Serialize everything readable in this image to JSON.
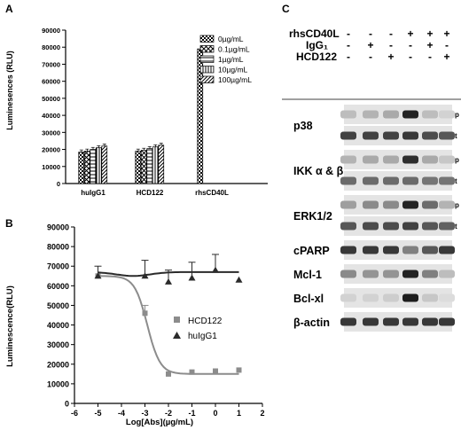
{
  "figure": {
    "panel_labels": [
      "A",
      "B",
      "C"
    ]
  },
  "chart_data": [
    {
      "panel": "A",
      "type": "bar",
      "ylabel": "Luminesences (RLU)",
      "xlabel": "",
      "ylim": [
        0,
        90000
      ],
      "yticks": [
        "0",
        "10000",
        "20000",
        "30000",
        "40000",
        "50000",
        "60000",
        "70000",
        "80000",
        "90000"
      ],
      "categories": [
        "huIgG1",
        "HCD122",
        "rhsCD40L"
      ],
      "legend_position": "top-right",
      "series": [
        {
          "name": "0µg/mL",
          "pattern": "checker-dense",
          "values": [
            18500,
            19000,
            79000
          ]
        },
        {
          "name": "0.1µg/mL",
          "pattern": "crosshatch",
          "values": [
            19000,
            19500,
            null
          ]
        },
        {
          "name": "1µg/mL",
          "pattern": "horizontal",
          "values": [
            20000,
            20500,
            null
          ]
        },
        {
          "name": "10µg/mL",
          "pattern": "vertical",
          "values": [
            21000,
            21500,
            null
          ]
        },
        {
          "name": "100µg/mL",
          "pattern": "diagonal",
          "values": [
            22000,
            22500,
            null
          ]
        }
      ]
    },
    {
      "panel": "B",
      "type": "scatter",
      "ylabel": "Luminescence(RLU)",
      "xlabel": "Log[Abs](µg/mL)",
      "xlim": [
        -6,
        2
      ],
      "ylim": [
        0,
        90000
      ],
      "xticks": [
        "-6",
        "-5",
        "-4",
        "-3",
        "-2",
        "-1",
        "0",
        "1",
        "2"
      ],
      "yticks": [
        "0",
        "10000",
        "20000",
        "30000",
        "40000",
        "50000",
        "60000",
        "70000",
        "80000",
        "90000"
      ],
      "legend_position": "right",
      "series": [
        {
          "name": "HCD122",
          "marker": "square",
          "color": "#8c8c8c",
          "x": [
            -5,
            -3,
            -2,
            -1,
            0,
            1
          ],
          "y": [
            65000,
            46000,
            15000,
            16000,
            16500,
            17000
          ],
          "err": [
            0,
            4000,
            0,
            0,
            0,
            0
          ],
          "fit": {
            "top": 65000,
            "bottom": 15000,
            "logEC50": -2.9,
            "hill": 1.6
          }
        },
        {
          "name": "huIgG1",
          "marker": "triangle",
          "color": "#2b2b2b",
          "x": [
            -5,
            -3,
            -2,
            -1,
            0,
            1
          ],
          "y": [
            65000,
            65000,
            62000,
            64000,
            68000,
            63000
          ],
          "err": [
            5000,
            8000,
            6000,
            8000,
            8000,
            0
          ],
          "fit": {
            "level": 67000
          }
        }
      ]
    }
  ],
  "western_blot": {
    "panel": "C",
    "conditions": [
      {
        "label": "rhsCD40L",
        "values": [
          "-",
          "-",
          "-",
          "+",
          "+",
          "+"
        ]
      },
      {
        "label": "IgG₁",
        "values": [
          "-",
          "+",
          "-",
          "-",
          "+",
          "-"
        ]
      },
      {
        "label": "HCD122",
        "values": [
          "-",
          "-",
          "+",
          "-",
          "-",
          "+"
        ]
      }
    ],
    "blots": [
      {
        "label": "p38",
        "rows": [
          {
            "tag": "p",
            "intensities": [
              0.2,
              0.25,
              0.3,
              0.95,
              0.2,
              0.1
            ]
          },
          {
            "tag": "t",
            "intensities": [
              0.8,
              0.8,
              0.8,
              0.85,
              0.75,
              0.7
            ]
          }
        ]
      },
      {
        "label": "IKK α & β",
        "rows": [
          {
            "tag": "p",
            "intensities": [
              0.25,
              0.3,
              0.3,
              0.9,
              0.3,
              0.15
            ]
          },
          {
            "tag": "t",
            "intensities": [
              0.6,
              0.6,
              0.6,
              0.6,
              0.55,
              0.55
            ]
          }
        ]
      },
      {
        "label": "ERK1/2",
        "rows": [
          {
            "tag": "p",
            "intensities": [
              0.35,
              0.45,
              0.45,
              0.95,
              0.6,
              0.25
            ]
          },
          {
            "tag": "t",
            "intensities": [
              0.7,
              0.75,
              0.75,
              0.8,
              0.7,
              0.65
            ]
          }
        ]
      },
      {
        "label": "cPARP",
        "rows": [
          {
            "tag": "",
            "intensities": [
              0.85,
              0.85,
              0.85,
              0.5,
              0.7,
              0.85
            ]
          }
        ]
      },
      {
        "label": "Mcl-1",
        "rows": [
          {
            "tag": "",
            "intensities": [
              0.45,
              0.4,
              0.4,
              0.95,
              0.5,
              0.2
            ]
          }
        ]
      },
      {
        "label": "Bcl-xl",
        "rows": [
          {
            "tag": "",
            "intensities": [
              0.1,
              0.1,
              0.12,
              0.98,
              0.15,
              0.05
            ]
          }
        ]
      },
      {
        "label": "β-actin",
        "rows": [
          {
            "tag": "",
            "intensities": [
              0.85,
              0.85,
              0.85,
              0.85,
              0.85,
              0.85
            ]
          }
        ]
      }
    ]
  }
}
